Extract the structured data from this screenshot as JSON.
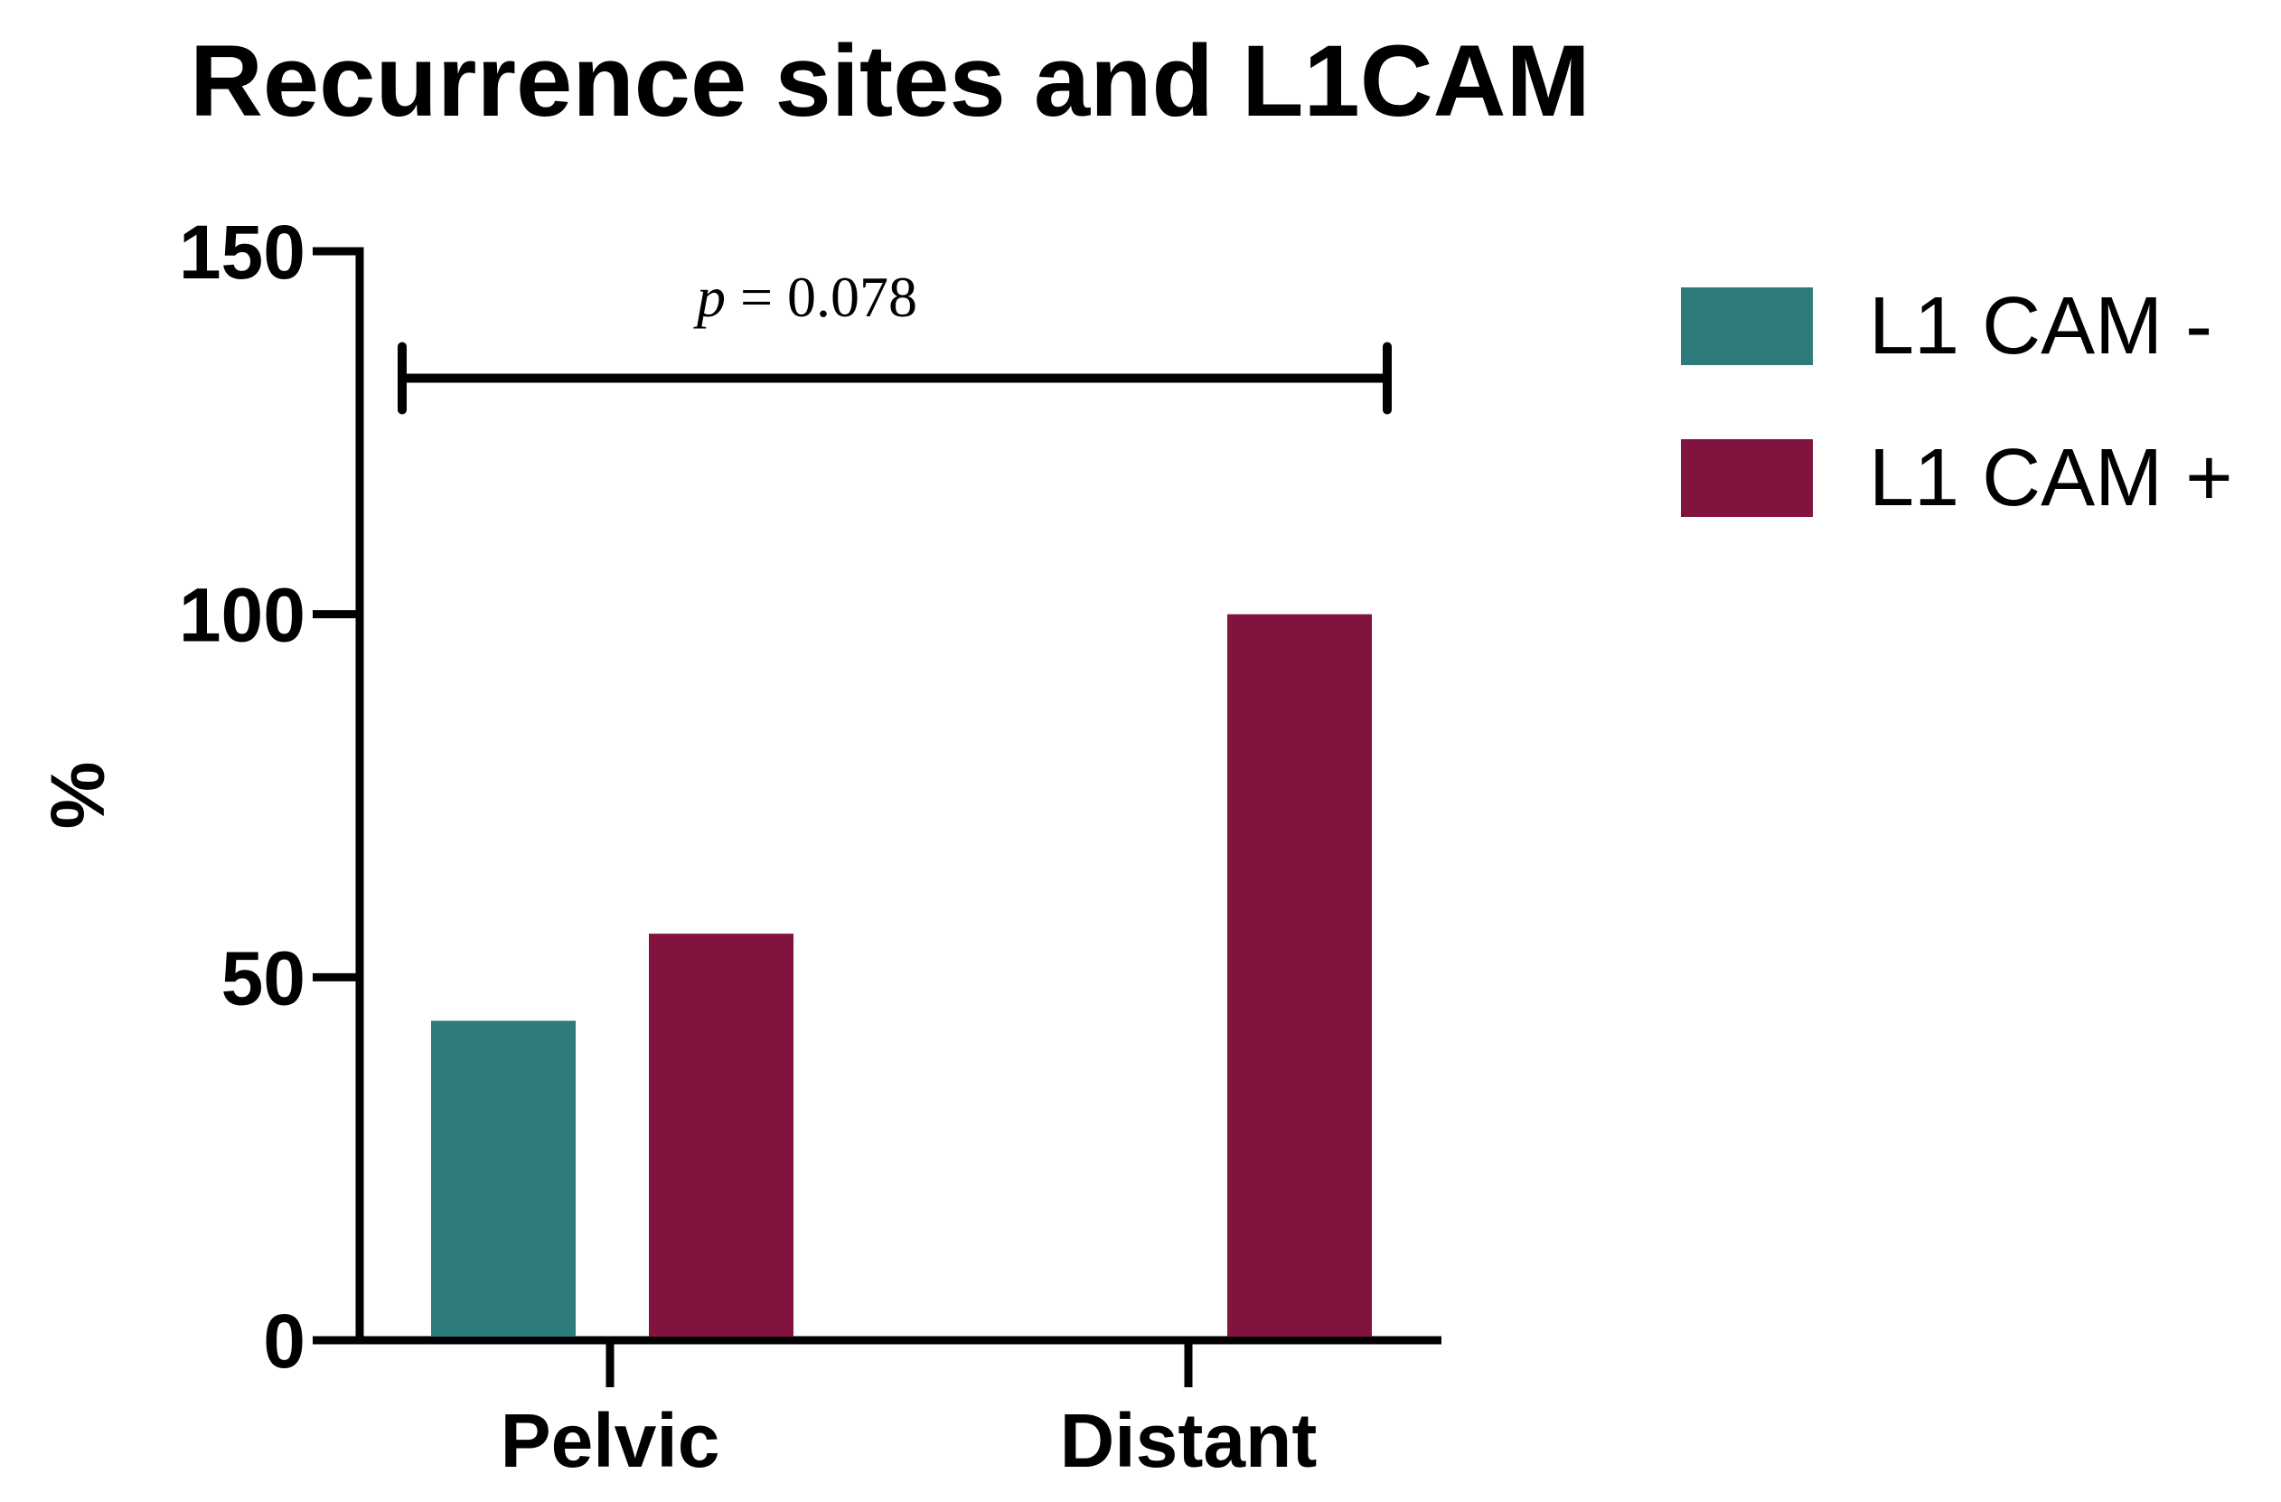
{
  "chart_data": {
    "type": "bar",
    "title": "Recurrence sites and L1CAM",
    "xlabel": "",
    "ylabel": "%",
    "categories": [
      "Pelvic",
      "Distant"
    ],
    "series": [
      {
        "name": "L1 CAM -",
        "color": "#2e7b7b",
        "values": [
          44,
          0
        ]
      },
      {
        "name": "L1 CAM +",
        "color": "#82133e",
        "values": [
          56,
          100
        ]
      }
    ],
    "ylim": [
      0,
      150
    ],
    "yticks": [
      0,
      50,
      100,
      150
    ],
    "grid": false,
    "legend_position": "top-right",
    "annotation": {
      "italic_part": "p",
      "rest": " = 0.078",
      "bracket_y": 135,
      "from_category": "Pelvic",
      "to_category": "Distant"
    }
  }
}
